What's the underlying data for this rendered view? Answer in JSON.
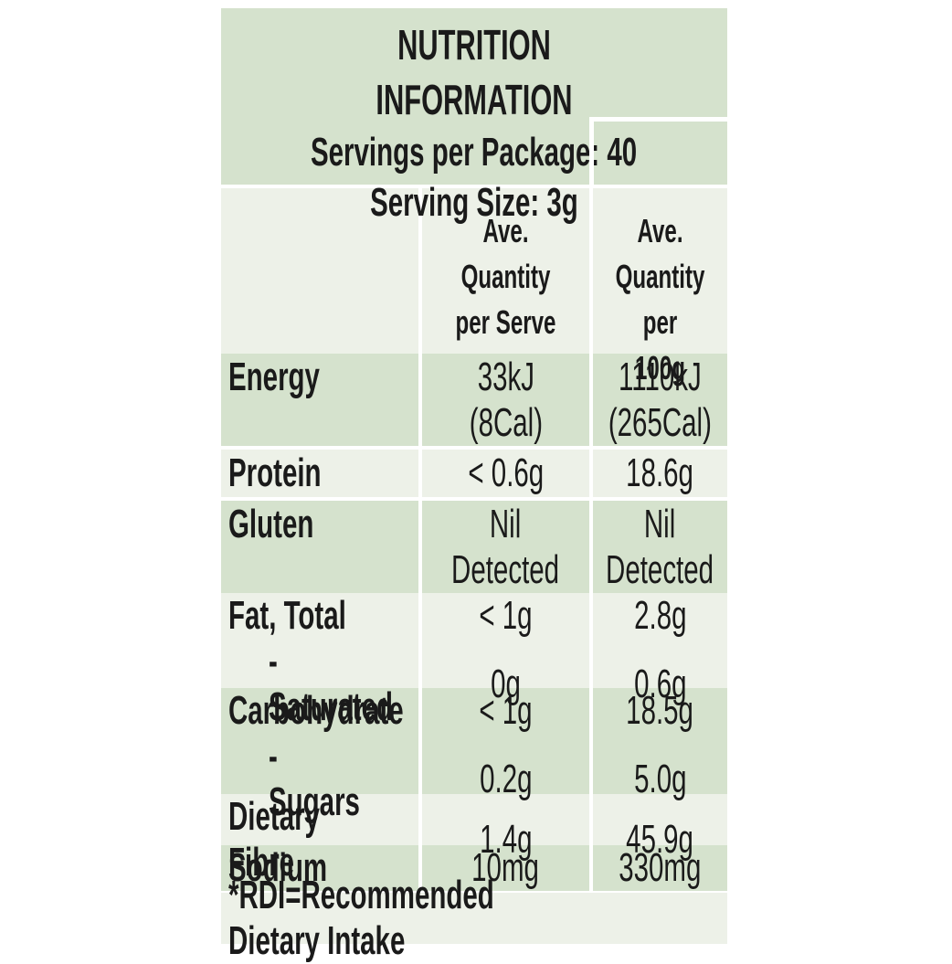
{
  "title": "NUTRITION INFORMATION",
  "servings_per_package": "Servings per Package: 40",
  "serving_size": "Serving Size: 3g",
  "column_headers": {
    "per_serve": "Ave. Quantity\nper Serve",
    "per_100g": "Ave.\nQuantity\nper 100g"
  },
  "body": [
    {
      "shade": "green",
      "rows": [
        {
          "label": "Energy",
          "per_serve": "33kJ\n(8Cal)",
          "per_100g": "1110kJ\n(265Cal)"
        }
      ]
    },
    {
      "shade": "light",
      "rows": [
        {
          "label": "Protein",
          "per_serve": "< 0.6g",
          "per_100g": "18.6g"
        }
      ]
    },
    {
      "shade": "green",
      "rows": [
        {
          "label": "Gluten",
          "per_serve": "Nil\nDetected",
          "per_100g": "Nil\nDetected"
        }
      ]
    },
    {
      "shade": "light",
      "rows": [
        {
          "label": "Fat, Total",
          "per_serve": "< 1g",
          "per_100g": "2.8g"
        },
        {
          "label": "- Saturated",
          "indent": true,
          "per_serve": "0g",
          "per_100g": "0.6g"
        }
      ]
    },
    {
      "shade": "green",
      "rows": [
        {
          "label": "Carbohydrate",
          "per_serve": "< 1g",
          "per_100g": "18.5g"
        },
        {
          "label": "- Sugars",
          "indent": true,
          "per_serve": "0.2g",
          "per_100g": "5.0g"
        }
      ]
    },
    {
      "shade": "light",
      "rows": [
        {
          "label": "Dietary Fibre",
          "per_serve": "1.4g",
          "per_100g": "45.9g"
        }
      ]
    },
    {
      "shade": "green",
      "rows": [
        {
          "label": "Sodium",
          "per_serve": "10mg",
          "per_100g": "330mg"
        }
      ]
    }
  ],
  "footnote": "*RDI=Recommended Dietary Intake",
  "colors": {
    "green": "#d5e2cd",
    "light": "#edf1e8",
    "text": "#1a1a1a",
    "divider": "#ffffff"
  }
}
